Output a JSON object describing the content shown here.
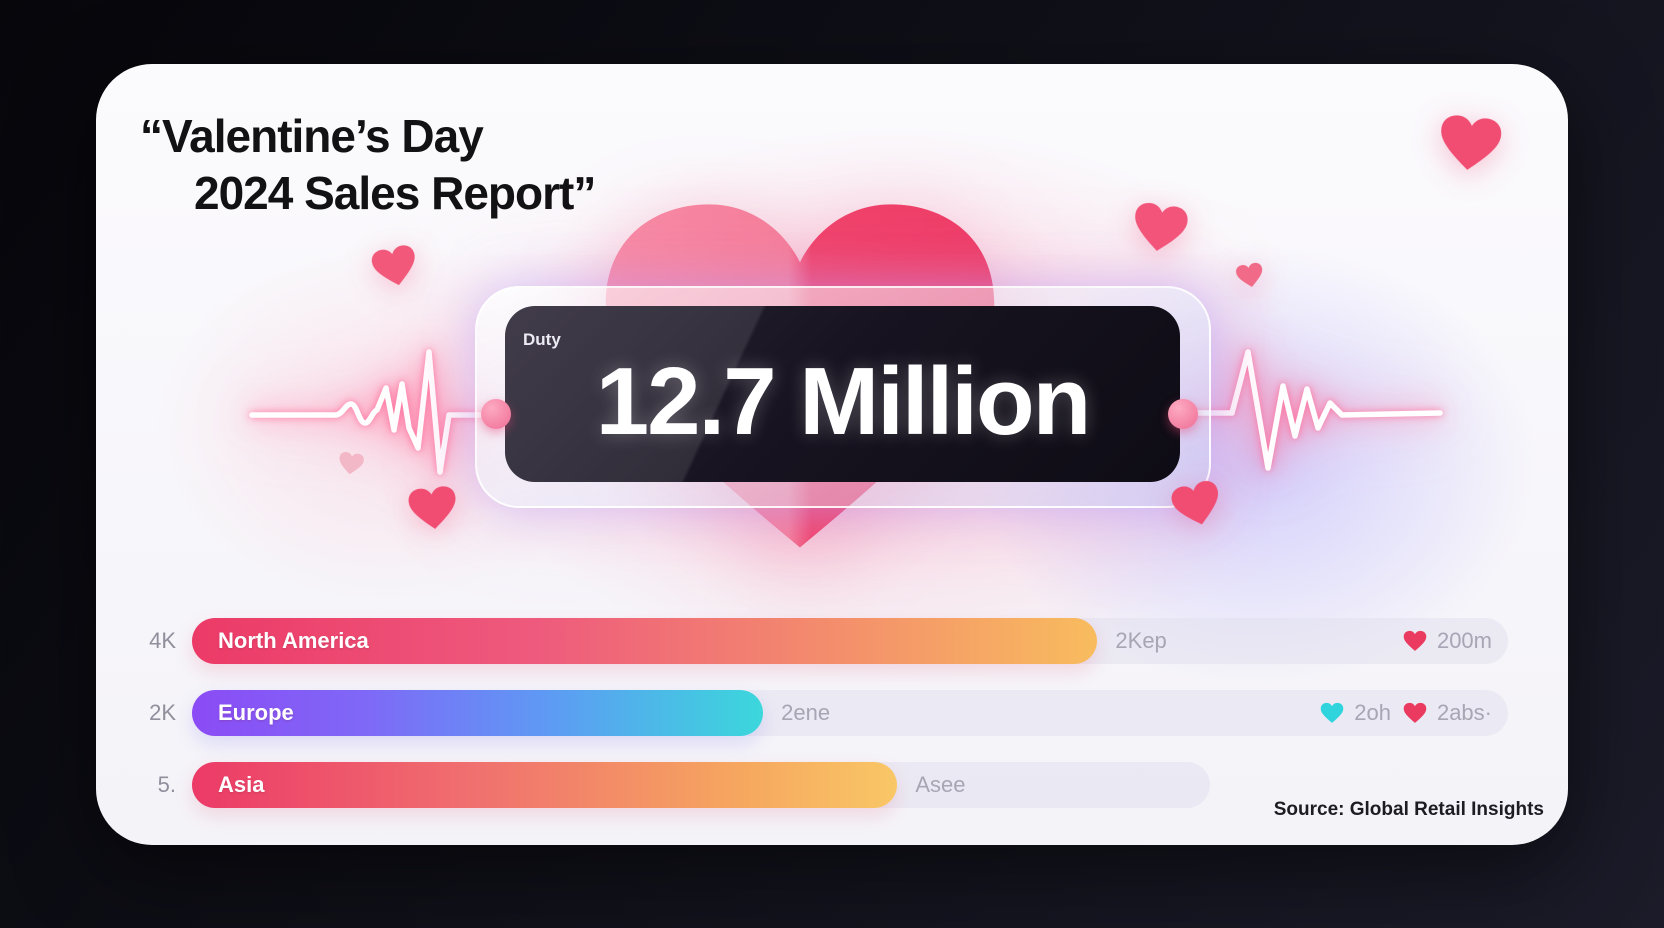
{
  "title": {
    "line1": "“Valentine’s Day",
    "line2": "2024 Sales Report”"
  },
  "badge": {
    "label": "Duty",
    "value": "12.7 Million"
  },
  "source": "Source: Global Retail Insights",
  "rows": [
    {
      "axis_label": "4K",
      "name": "North America",
      "value_label": "2Kep",
      "pct": 68.8,
      "stats": [
        {
          "icon": "heart-red-icon",
          "text": "200m"
        }
      ]
    },
    {
      "axis_label": "2K",
      "name": "Europe",
      "value_label": "2ene",
      "pct": 43.4,
      "stats": [
        {
          "icon": "heart-cyan-icon",
          "text": "2oh"
        },
        {
          "icon": "heart-red-icon",
          "text": "2abs·"
        }
      ]
    },
    {
      "axis_label": "5.",
      "name": "Asia",
      "value_label": "Asee",
      "pct": 53.6,
      "stats": []
    }
  ],
  "colors": {
    "heart_red": "#ef426b",
    "heart_pink": "#f78ba6",
    "heart_cyan": "#2fd4dd",
    "accent_pink": "#f26d92",
    "bar_na_gradient": [
      "#ec3a67",
      "#f8bc5e"
    ],
    "bar_eu_gradient": [
      "#8b4bf5",
      "#3bd7dc"
    ],
    "bar_as_gradient": [
      "#ec3a67",
      "#f9c766"
    ]
  },
  "chart_data": {
    "type": "bar",
    "orientation": "horizontal",
    "title": "“Valentine’s Day 2024 Sales Report”",
    "highlight": {
      "label": "Duty",
      "value": "12.7 Million"
    },
    "categories": [
      "North America",
      "Europe",
      "Asia"
    ],
    "y_axis_tick_labels": [
      "4K",
      "2K",
      "5."
    ],
    "bar_lengths_pct_of_track": [
      68.8,
      43.4,
      53.6
    ],
    "bar_end_labels": [
      "2Kep",
      "2ene",
      "Asee"
    ],
    "right_annotations": [
      [
        "heart-red 200m"
      ],
      [
        "heart-cyan 2oh",
        "heart-red 2abs·"
      ],
      []
    ],
    "legend": "none",
    "grid": "off",
    "source": "Source: Global Retail Insights"
  }
}
